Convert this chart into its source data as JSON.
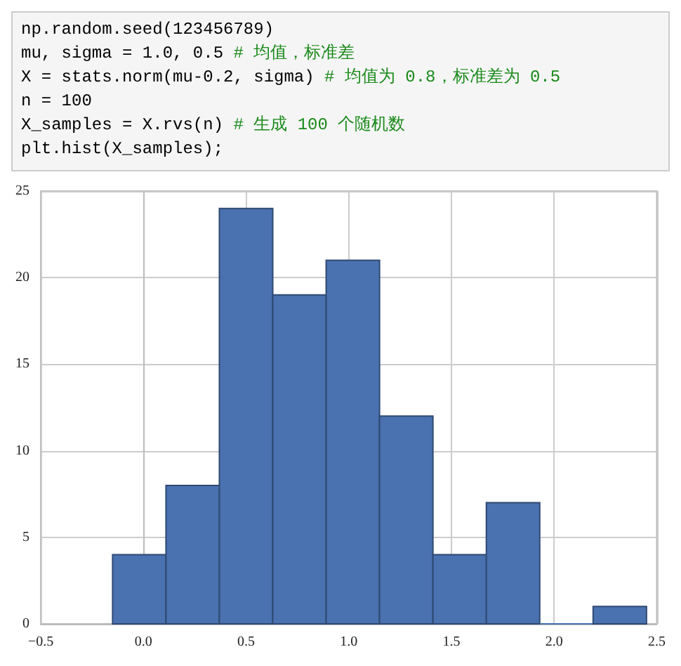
{
  "chart_data": {
    "type": "histogram",
    "annotations": [
      "np.random.seed(123456789)\nmu, sigma = 1.0, 0.5 # 均值，标准差\nX = stats.norm(mu-0.2, sigma) # 均值为 0.8，标准差为 0.5\nn = 100\nX_samples = X.rvs(n) # 生成 100 个随机数\nplt.hist(X_samples);"
    ],
    "bins": [
      -0.15,
      0.11,
      0.37,
      0.63,
      0.89,
      1.15,
      1.41,
      1.67,
      1.93,
      2.19,
      2.45
    ],
    "values": [
      4,
      8,
      24,
      19,
      21,
      12,
      4,
      7,
      0,
      1
    ],
    "color": "#4a72b0",
    "xlim": [
      -0.5,
      2.5
    ],
    "xticks": [
      -0.5,
      {
        "value": 0,
        "label": "0.0"
      },
      0.5,
      {
        "value": 1,
        "label": "1.0"
      },
      1.5,
      {
        "value": 2,
        "label": "2.0"
      },
      2.5
    ],
    "ylim": [
      0,
      25
    ],
    "yticks": [
      0,
      5,
      10,
      15,
      20,
      25
    ],
    "grid": true
  }
}
